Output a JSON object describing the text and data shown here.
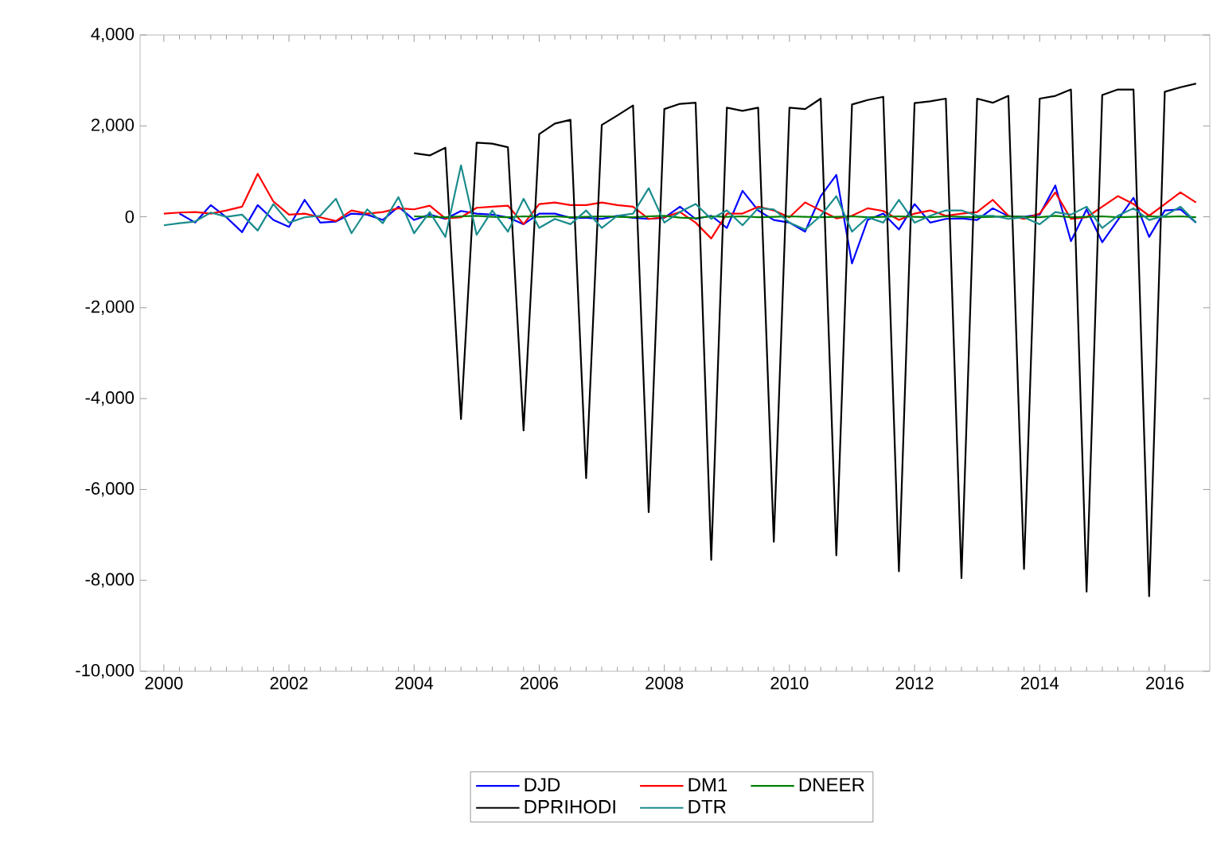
{
  "chart_data": {
    "type": "line",
    "x": [
      2000,
      2000.25,
      2000.5,
      2000.75,
      2001,
      2001.25,
      2001.5,
      2001.75,
      2002,
      2002.25,
      2002.5,
      2002.75,
      2003,
      2003.25,
      2003.5,
      2003.75,
      2004,
      2004.25,
      2004.5,
      2004.75,
      2005,
      2005.25,
      2005.5,
      2005.75,
      2006,
      2006.25,
      2006.5,
      2006.75,
      2007,
      2007.25,
      2007.5,
      2007.75,
      2008,
      2008.25,
      2008.5,
      2008.75,
      2009,
      2009.25,
      2009.5,
      2009.75,
      2010,
      2010.25,
      2010.5,
      2010.75,
      2011,
      2011.25,
      2011.5,
      2011.75,
      2012,
      2012.25,
      2012.5,
      2012.75,
      2013,
      2013.25,
      2013.5,
      2013.75,
      2014,
      2014.25,
      2014.5,
      2014.75,
      2015,
      2015.25,
      2015.5,
      2015.75,
      2016,
      2016.25,
      2016.5
    ],
    "series": [
      {
        "name": "DJD",
        "color": "#0000ff",
        "values": [
          null,
          70,
          -128,
          257,
          -12,
          -338,
          257,
          -70,
          -222,
          373,
          -128,
          -105,
          70,
          47,
          -70,
          222,
          -70,
          47,
          -47,
          128,
          70,
          47,
          -12,
          -163,
          70,
          70,
          -23,
          -23,
          -47,
          23,
          -23,
          -47,
          -23,
          222,
          -47,
          23,
          -245,
          572,
          140,
          -70,
          -128,
          -327,
          455,
          922,
          -1027,
          -70,
          70,
          -280,
          280,
          -128,
          -47,
          -35,
          -70,
          187,
          12,
          0,
          47,
          688,
          -537,
          163,
          -560,
          -70,
          420,
          -443,
          140,
          163,
          -128
        ]
      },
      {
        "name": "DM1",
        "color": "#ff0000",
        "values": [
          70,
          93,
          105,
          70,
          140,
          222,
          945,
          338,
          47,
          70,
          -12,
          -93,
          140,
          70,
          105,
          187,
          163,
          245,
          -35,
          -12,
          198,
          222,
          245,
          -163,
          280,
          315,
          257,
          257,
          315,
          257,
          222,
          -47,
          -12,
          105,
          -128,
          -478,
          70,
          70,
          222,
          140,
          -12,
          315,
          140,
          -35,
          23,
          187,
          128,
          -70,
          70,
          140,
          23,
          70,
          105,
          373,
          23,
          -47,
          70,
          537,
          -47,
          -12,
          222,
          455,
          280,
          23,
          280,
          537,
          315
        ]
      },
      {
        "name": "DNEER",
        "color": "#008000",
        "values": [
          null,
          null,
          null,
          null,
          null,
          null,
          null,
          null,
          null,
          null,
          null,
          null,
          null,
          null,
          null,
          null,
          10,
          0,
          -10,
          10,
          20,
          0,
          -10,
          10,
          0,
          10,
          -10,
          0,
          10,
          0,
          -10,
          10,
          20,
          -20,
          -30,
          10,
          0,
          10,
          -10,
          0,
          10,
          0,
          -10,
          0,
          10,
          -10,
          0,
          10,
          0,
          -10,
          10,
          0,
          -10,
          0,
          10,
          0,
          -10,
          20,
          -10,
          0,
          10,
          -10,
          0,
          10,
          0,
          10,
          -10
        ]
      },
      {
        "name": "DPRIHODI",
        "color": "#000000",
        "values": [
          null,
          null,
          null,
          null,
          null,
          null,
          null,
          null,
          null,
          null,
          null,
          null,
          null,
          null,
          null,
          null,
          1400,
          1350,
          1520,
          -4450,
          1630,
          1610,
          1530,
          -4700,
          1820,
          2050,
          2135,
          -5750,
          2020,
          2230,
          2450,
          -6500,
          2370,
          2485,
          2510,
          -7550,
          2400,
          2330,
          2400,
          -7150,
          2400,
          2370,
          2600,
          -7450,
          2470,
          2570,
          2640,
          -7800,
          2500,
          2540,
          2600,
          -7950,
          2600,
          2510,
          2660,
          -7750,
          2600,
          2660,
          2800,
          -8250,
          2680,
          2800,
          2800,
          -8350,
          2750,
          2850,
          2930
        ]
      },
      {
        "name": "DTR",
        "color": "#1a8c8c",
        "values": [
          -187,
          -140,
          -105,
          93,
          0,
          47,
          -303,
          280,
          -128,
          -12,
          23,
          397,
          -362,
          163,
          -140,
          432,
          -362,
          105,
          -443,
          1132,
          -397,
          140,
          -327,
          397,
          -245,
          -47,
          -163,
          140,
          -245,
          23,
          70,
          630,
          -128,
          105,
          280,
          -47,
          140,
          -187,
          187,
          163,
          -128,
          -280,
          23,
          455,
          -327,
          -12,
          -128,
          373,
          -128,
          23,
          140,
          140,
          23,
          23,
          -47,
          -12,
          -163,
          105,
          47,
          222,
          -245,
          23,
          187,
          -70,
          23,
          222,
          -128
        ]
      }
    ],
    "xlim": [
      1999.62,
      2016.72
    ],
    "ylim": [
      -10000,
      4000
    ],
    "xticks": [
      2000,
      2002,
      2004,
      2006,
      2008,
      2010,
      2012,
      2014,
      2016
    ],
    "yticks": [
      {
        "value": -10000,
        "label": "-10,000"
      },
      {
        "value": -8000,
        "label": "-8,000"
      },
      {
        "value": -6000,
        "label": "-6,000"
      },
      {
        "value": -4000,
        "label": "-4,000"
      },
      {
        "value": -2000,
        "label": "-2,000"
      },
      {
        "value": 0,
        "label": "0"
      },
      {
        "value": 2000,
        "label": "2,000"
      },
      {
        "value": 4000,
        "label": "4,000"
      }
    ],
    "grid": false,
    "legend": "bottom",
    "marker": "none",
    "line_style": "solid"
  }
}
